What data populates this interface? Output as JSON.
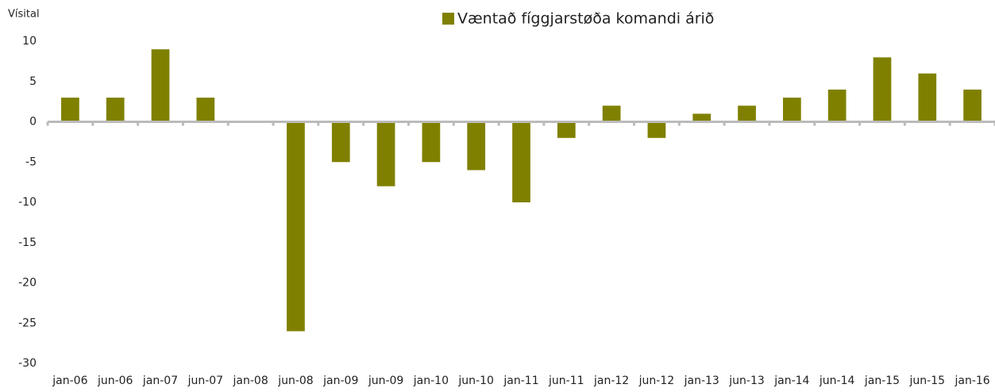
{
  "chart_data": {
    "type": "bar",
    "ylabel": "Vísital",
    "categories": [
      "jan-06",
      "jun-06",
      "jan-07",
      "jun-07",
      "jan-08",
      "jun-08",
      "jan-09",
      "jun-09",
      "jan-10",
      "jun-10",
      "jan-11",
      "jun-11",
      "jan-12",
      "jun-12",
      "jan-13",
      "jun-13",
      "jan-14",
      "jun-14",
      "jan-15",
      "jun-15",
      "jan-16"
    ],
    "series": [
      {
        "name": "Væntað fíggjarstøða komandi árið",
        "color": "#808000",
        "values": [
          3,
          3,
          9,
          3,
          0,
          -26,
          -5,
          -8,
          -5,
          -6,
          -10,
          -2,
          2,
          -2,
          1,
          2,
          3,
          4,
          8,
          6,
          4
        ]
      }
    ],
    "ylim": [
      -30,
      10
    ],
    "yticks": [
      -30,
      -25,
      -20,
      -15,
      -10,
      -5,
      0,
      5,
      10
    ],
    "grid": false,
    "legend": "top"
  }
}
